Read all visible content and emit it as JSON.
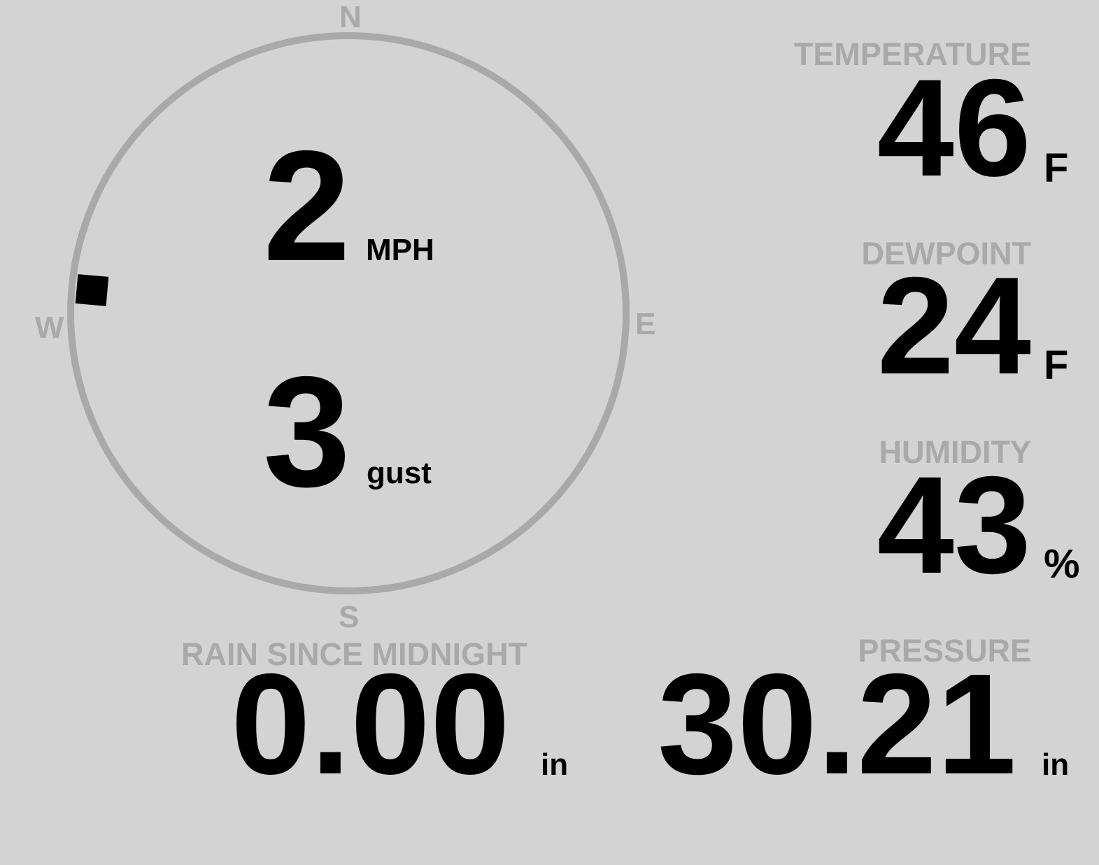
{
  "wind": {
    "speed": "2",
    "speed_unit": "MPH",
    "gust": "3",
    "gust_label": "gust",
    "direction_degrees": 275,
    "compass": {
      "north": "N",
      "south": "S",
      "east": "E",
      "west": "W"
    }
  },
  "temperature": {
    "label": "TEMPERATURE",
    "value": "46",
    "unit": "F"
  },
  "dewpoint": {
    "label": "DEWPOINT",
    "value": "24",
    "unit": "F"
  },
  "humidity": {
    "label": "HUMIDITY",
    "value": "43",
    "unit": "%"
  },
  "rain": {
    "label": "RAIN SINCE MIDNIGHT",
    "value": "0.00",
    "unit": "in"
  },
  "pressure": {
    "label": "PRESSURE",
    "value": "30.21",
    "unit": "in"
  },
  "colors": {
    "background": "#d3d3d3",
    "label": "#a9a9a9",
    "value": "#000000"
  }
}
